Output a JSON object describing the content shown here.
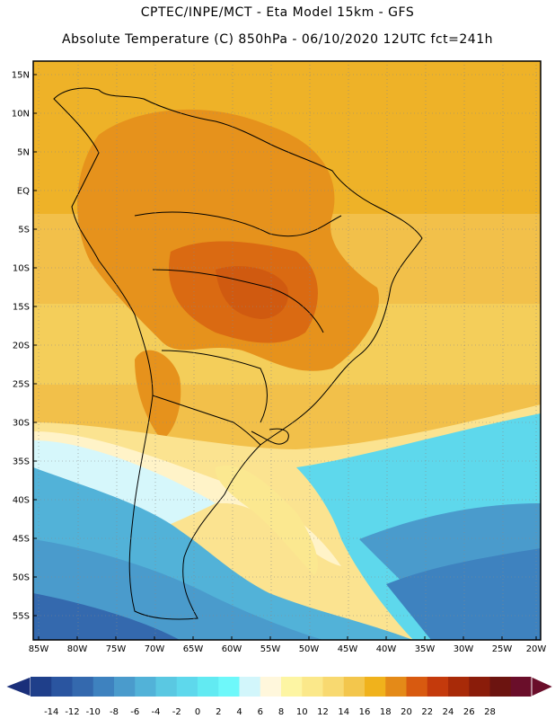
{
  "header": {
    "line1": "CPTEC/INPE/MCT -  Eta Model 15km - GFS",
    "line2": "Absolute Temperature (C) 850hPa - 06/10/2020 12UTC fct=241h"
  },
  "map": {
    "lat_ticks": [
      "15N",
      "10N",
      "5N",
      "EQ",
      "5S",
      "10S",
      "15S",
      "20S",
      "25S",
      "30S",
      "35S",
      "40S",
      "45S",
      "50S",
      "55S"
    ],
    "lon_ticks": [
      "85W",
      "80W",
      "75W",
      "70W",
      "65W",
      "60W",
      "55W",
      "50W",
      "45W",
      "40W",
      "35W",
      "30W",
      "25W",
      "20W"
    ]
  },
  "colorbar": {
    "labels": [
      "-14",
      "-12",
      "-10",
      "-8",
      "-6",
      "-4",
      "-2",
      "0",
      "2",
      "4",
      "6",
      "8",
      "10",
      "12",
      "14",
      "16",
      "18",
      "20",
      "22",
      "24",
      "26",
      "28"
    ],
    "colors": [
      "#1f3f8a",
      "#2a55a0",
      "#3469ae",
      "#3e82bf",
      "#4a9bcc",
      "#52b2d8",
      "#5ac8e2",
      "#5ed8ec",
      "#62eaf2",
      "#6ef8fa",
      "#d2f6fb",
      "#fff7dc",
      "#fdf5a3",
      "#fbe88a",
      "#f8d970",
      "#f3c64c",
      "#f0b21c",
      "#e48a18",
      "#d85a10",
      "#c43a0c",
      "#a82a08",
      "#8a1c0a",
      "#6c1410",
      "#6a0e2a"
    ],
    "left_arrow_color": "#1a2f7a",
    "right_arrow_color": "#6a0e2a"
  }
}
